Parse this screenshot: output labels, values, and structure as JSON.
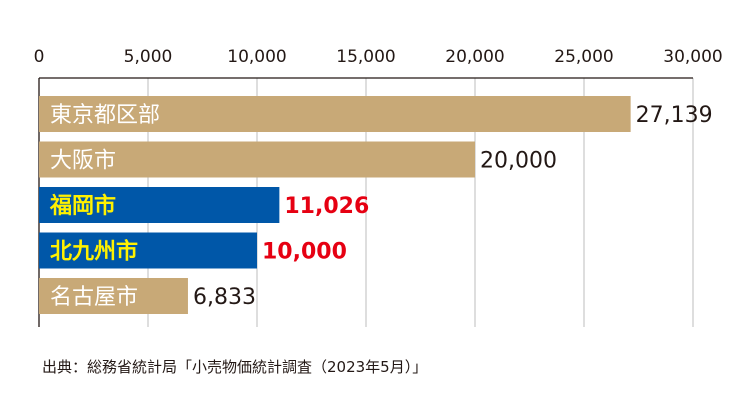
{
  "chart_data": {
    "type": "bar",
    "orientation": "horizontal",
    "xlim": [
      0,
      30000
    ],
    "ticks": [
      0,
      5000,
      10000,
      15000,
      20000,
      25000,
      30000
    ],
    "tick_labels": [
      "0",
      "5,000",
      "10,000",
      "15,000",
      "20,000",
      "25,000",
      "30,000"
    ],
    "grid": true,
    "categories": [
      "東京都区部",
      "大阪市",
      "福岡市",
      "北九州市",
      "名古屋市"
    ],
    "values": [
      27139,
      20000,
      11026,
      10000,
      6833
    ],
    "value_labels": [
      "27,139",
      "20,000",
      "11,026",
      "10,000",
      "6,833"
    ],
    "highlighted": [
      false,
      false,
      true,
      true,
      false
    ],
    "colors": {
      "bar_default": "#c8a977",
      "bar_highlight": "#0057a8",
      "label_default": "#ffffff",
      "label_highlight": "#fff100",
      "value_default": "#231815",
      "value_highlight": "#e60012",
      "grid": "#bdbdbd",
      "axis": "#231815"
    }
  },
  "source": "出典：総務省統計局「小売物価統計調査（2023年5月）」"
}
